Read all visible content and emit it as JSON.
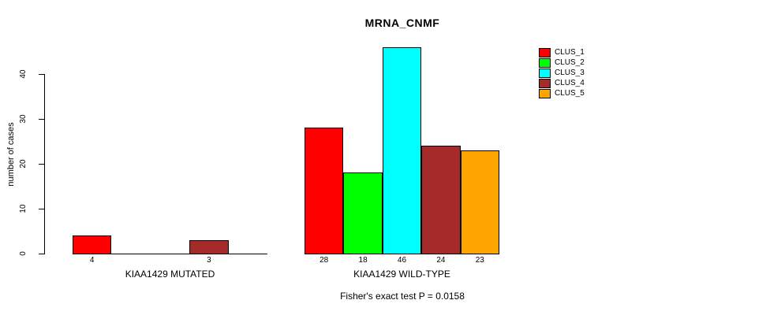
{
  "chart_data": {
    "type": "bar",
    "title": "MRNA_CNMF",
    "xlabel": "",
    "ylabel": "number of cases",
    "ylim": [
      0,
      46
    ],
    "yticks": [
      0,
      10,
      20,
      30,
      40
    ],
    "grid": false,
    "legend_position": "right",
    "categories": [
      "KIAA1429 MUTATED",
      "KIAA1429 WILD-TYPE"
    ],
    "series": [
      {
        "name": "CLUS_1",
        "color": "#FF0000",
        "values": [
          4,
          28
        ]
      },
      {
        "name": "CLUS_2",
        "color": "#00FF00",
        "values": [
          0,
          18
        ]
      },
      {
        "name": "CLUS_3",
        "color": "#00FFFF",
        "values": [
          0,
          46
        ]
      },
      {
        "name": "CLUS_4",
        "color": "#A52A2A",
        "values": [
          3,
          24
        ]
      },
      {
        "name": "CLUS_5",
        "color": "#FFA500",
        "values": [
          0,
          23
        ]
      }
    ],
    "bar_value_labels_shown_only_when_nonzero": true,
    "footnote": "Fisher's exact test P = 0.0158",
    "axis_color": "#000000",
    "background": "#FFFFFF"
  }
}
